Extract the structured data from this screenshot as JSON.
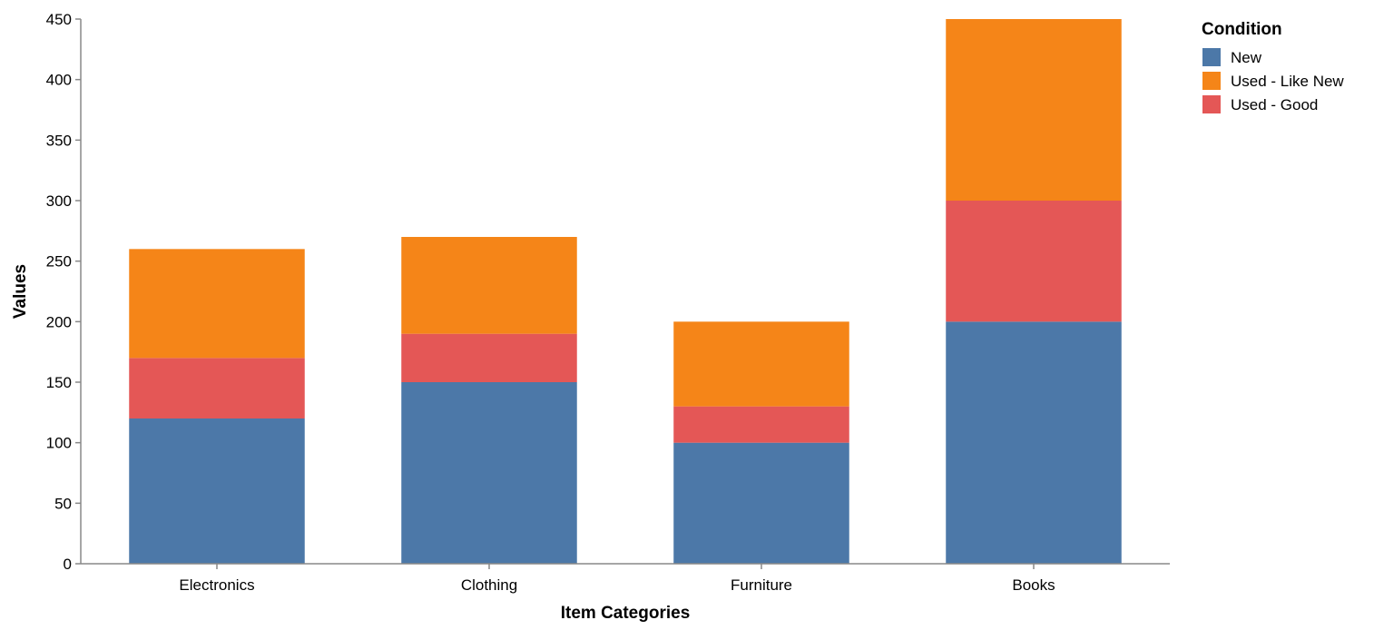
{
  "chart_data": {
    "type": "bar",
    "stacked": true,
    "categories": [
      "Electronics",
      "Clothing",
      "Furniture",
      "Books"
    ],
    "series": [
      {
        "name": "New",
        "color": "#4c78a8",
        "values": [
          120,
          150,
          100,
          200
        ]
      },
      {
        "name": "Used - Good",
        "color": "#e45756",
        "values": [
          50,
          40,
          30,
          100
        ]
      },
      {
        "name": "Used - Like New",
        "color": "#f58518",
        "values": [
          90,
          80,
          70,
          150
        ]
      }
    ],
    "xlabel": "Item Categories",
    "ylabel": "Values",
    "ylim": [
      0,
      450
    ],
    "yticks": [
      0,
      50,
      100,
      150,
      200,
      250,
      300,
      350,
      400,
      450
    ],
    "grid": false,
    "legend": {
      "title": "Condition",
      "placement": "top-right",
      "entries": [
        {
          "label": "New",
          "color": "#4c78a8"
        },
        {
          "label": "Used - Like New",
          "color": "#f58518"
        },
        {
          "label": "Used - Good",
          "color": "#e45756"
        }
      ]
    }
  }
}
